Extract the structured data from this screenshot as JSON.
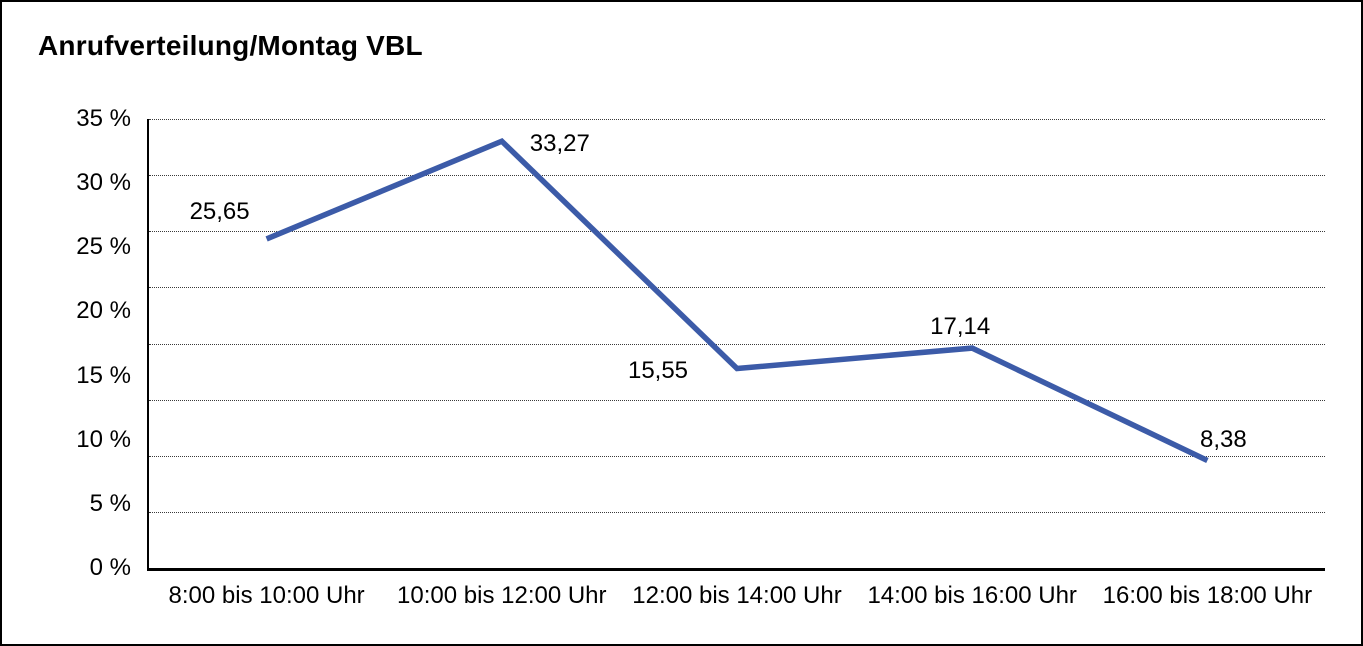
{
  "window": {
    "background_color": "#ffffff",
    "border_color": "#000000"
  },
  "title": "Anrufverteilung/Montag VBL",
  "chart_data": {
    "type": "line",
    "title": "Anrufverteilung/Montag VBL",
    "categories": [
      "8:00 bis 10:00 Uhr",
      "10:00 bis 12:00 Uhr",
      "12:00 bis 14:00 Uhr",
      "14:00 bis 16:00 Uhr",
      "16:00 bis 18:00 Uhr"
    ],
    "values": [
      25.65,
      33.27,
      15.55,
      17.14,
      8.38
    ],
    "value_labels": [
      "25,65",
      "33,27",
      "15,55",
      "17,14",
      "8,38"
    ],
    "unit": "%",
    "ylim": [
      0,
      35
    ],
    "y_ticks": [
      35,
      30,
      25,
      20,
      15,
      10,
      5,
      0
    ],
    "y_tick_labels": [
      "35 %",
      "30 %",
      "25 %",
      "20 %",
      "15 %",
      "10 %",
      "5 %",
      "0 %"
    ],
    "xlabel": "",
    "ylabel": "",
    "legend": "none",
    "grid": "horizontal-dotted",
    "gridline_divisions": 8,
    "line_color": "#3C5BA8",
    "text_color": "#000000"
  }
}
